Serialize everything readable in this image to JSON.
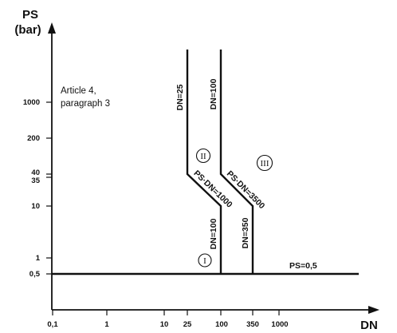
{
  "y_axis": {
    "title_line1": "PS",
    "title_line2": "(bar)",
    "ticks": [
      "1000",
      "200",
      "40",
      "35",
      "10",
      "1",
      "0,5"
    ]
  },
  "x_axis": {
    "title": "DN",
    "ticks": [
      "0,1",
      "1",
      "10",
      "25",
      "100",
      "350",
      "1000"
    ]
  },
  "note": {
    "line1": "Article 4,",
    "line2": "paragraph 3"
  },
  "labels": {
    "dn25": "DN=25",
    "dn100_top": "DN=100",
    "ps_dn_1000": "PS·DN=1000",
    "ps_dn_3500": "PS·DN=3500",
    "dn100_bottom": "DN=100",
    "dn350": "DN=350",
    "ps05": "PS=0,5"
  },
  "regions": {
    "r1": "I",
    "r2": "II",
    "r3": "III"
  }
}
